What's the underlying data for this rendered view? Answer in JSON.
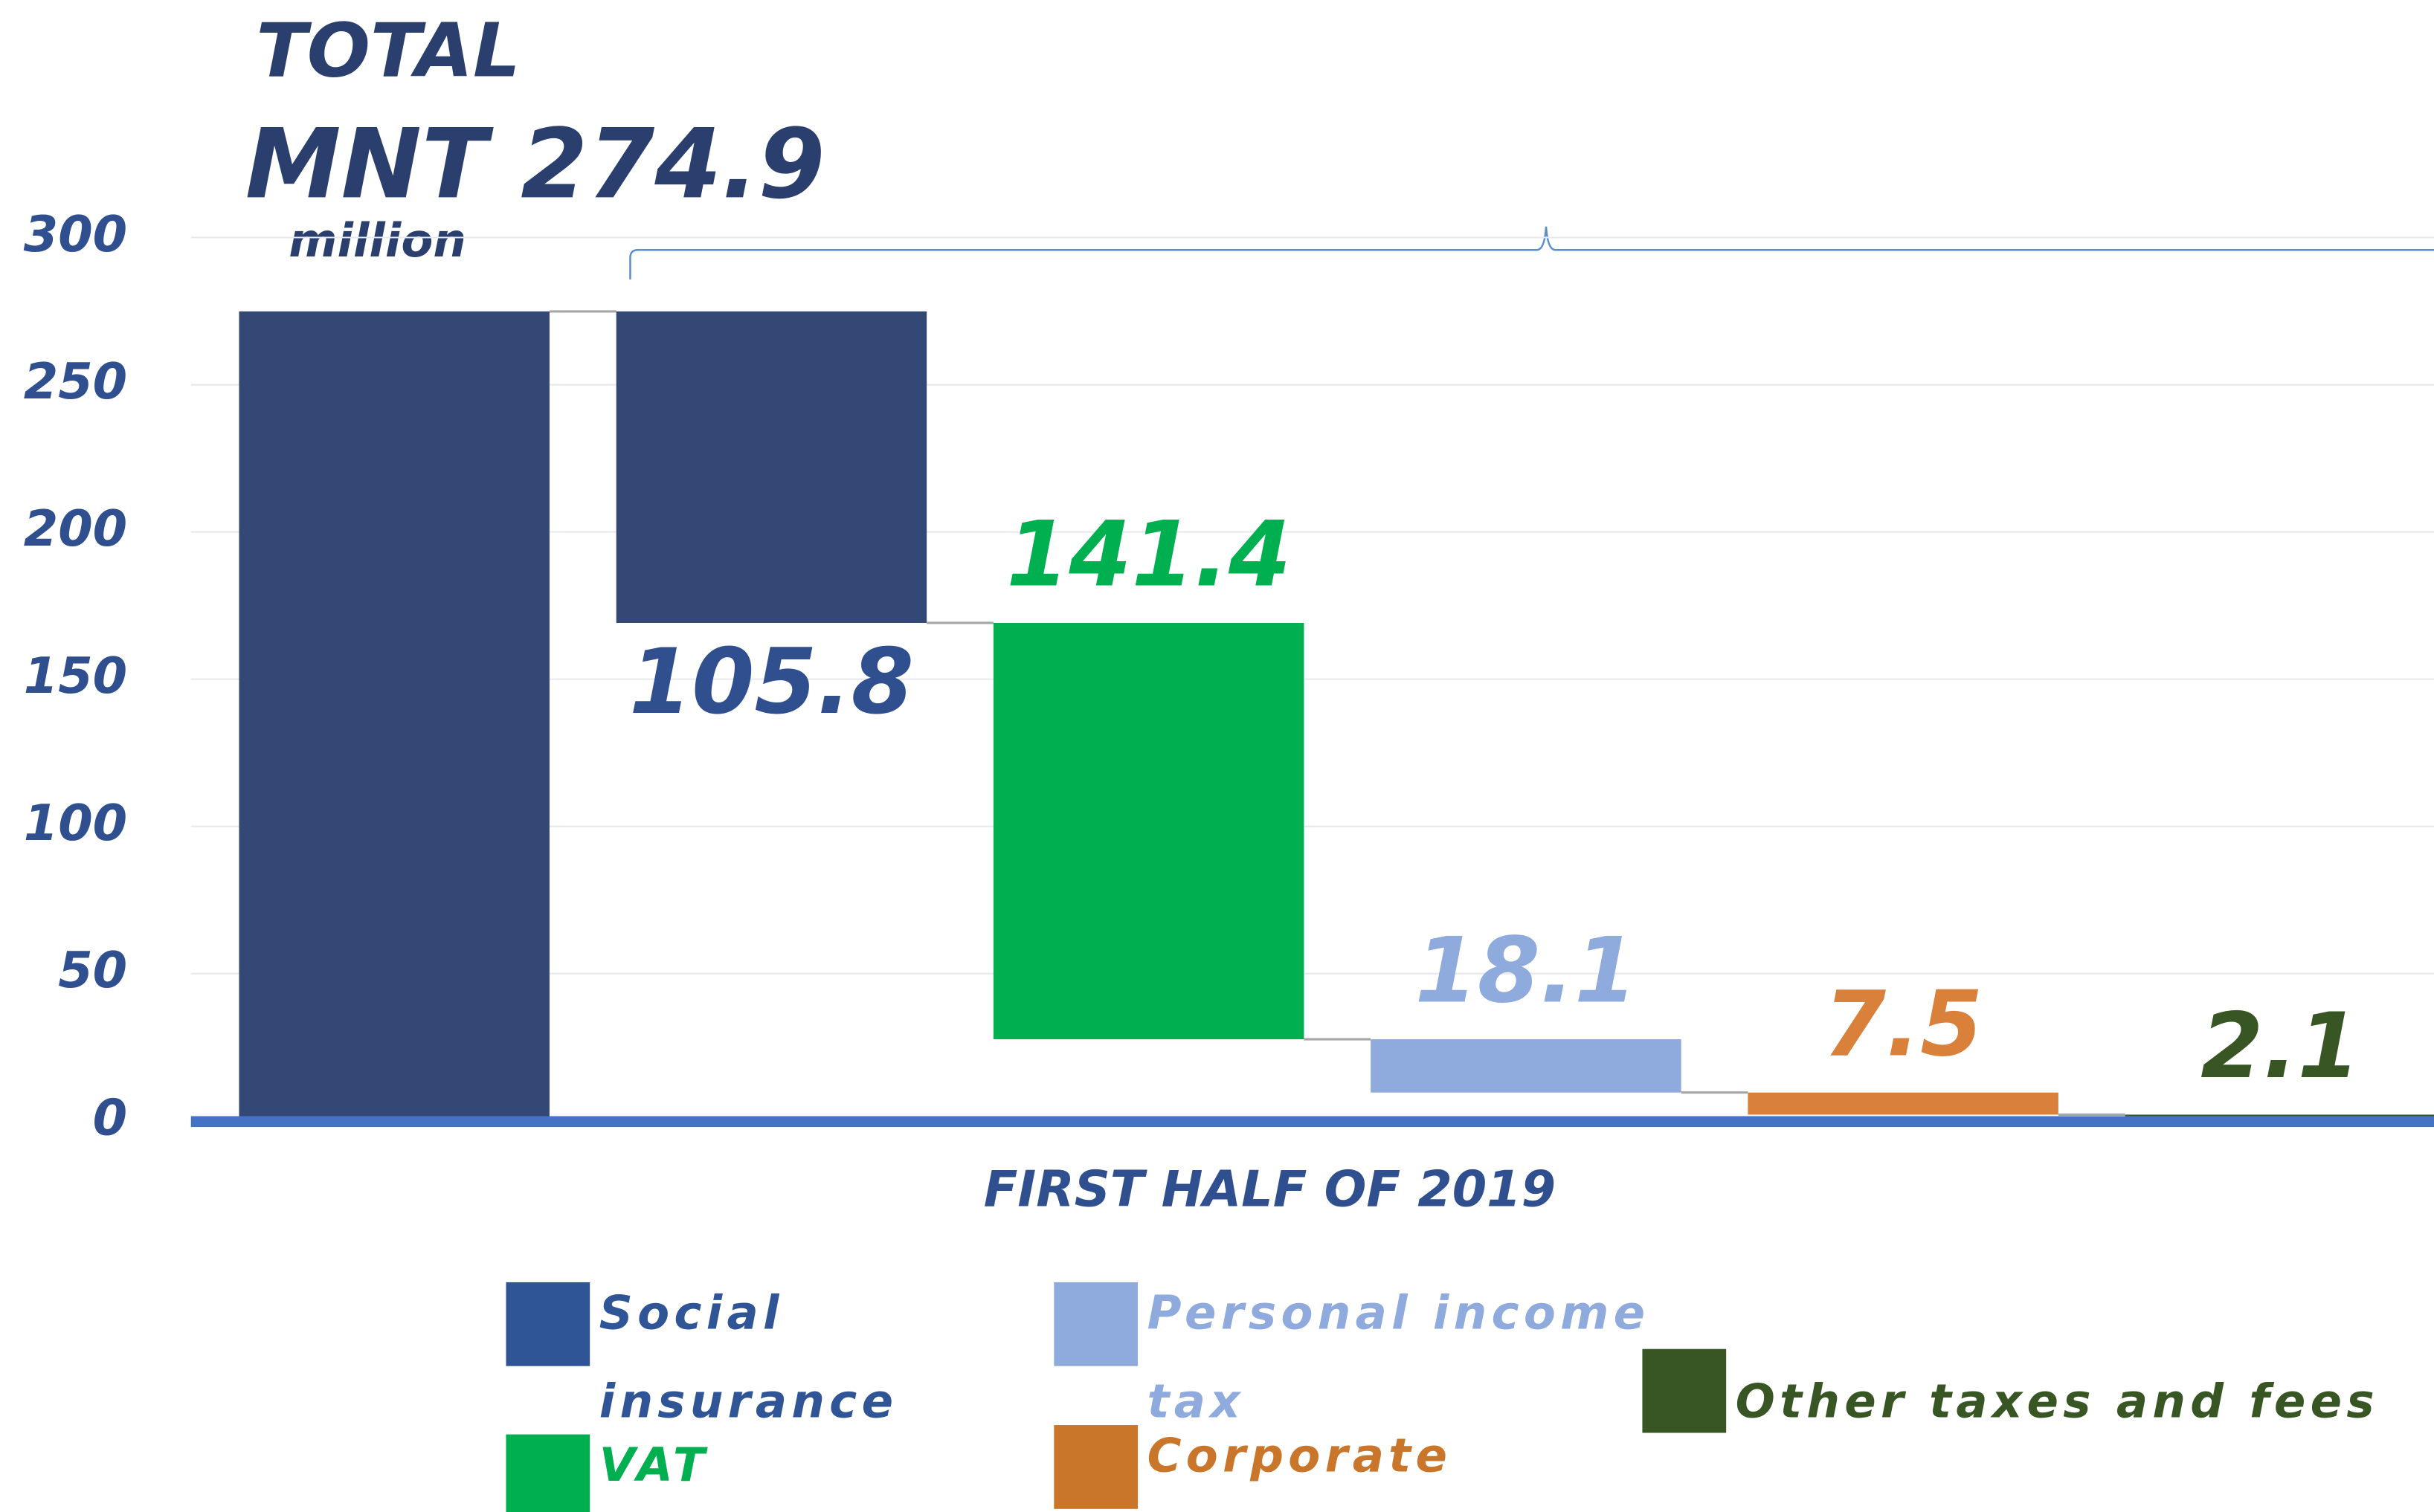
{
  "chart_data": {
    "type": "waterfall",
    "annotations": [
      "TOTAL",
      "MNT 274.9",
      "million"
    ],
    "x_label": "FIRST HALF OF 2019",
    "ylim": [
      0,
      300
    ],
    "yticks": [
      0,
      50,
      100,
      150,
      200,
      250,
      300
    ],
    "grid": true,
    "total": {
      "value": 274.9,
      "color": "#334875"
    },
    "series": [
      {
        "name": "Social insurance",
        "color": "#334875",
        "legend_color": "#2f5597",
        "value": 105.8
      },
      {
        "name": "VAT",
        "color": "#00b050",
        "legend_color": "#00b050",
        "value": 141.4
      },
      {
        "name": "Personal income tax",
        "color": "#8faadc",
        "legend_color": "#8faadc",
        "value": 18.1
      },
      {
        "name": "Corporate",
        "color": "#d9813a",
        "legend_color": "#c9752a",
        "value": 7.5
      },
      {
        "name": "Other taxes and fees",
        "color": "#375623",
        "legend_color": "#375623",
        "value": 2.1
      }
    ]
  }
}
